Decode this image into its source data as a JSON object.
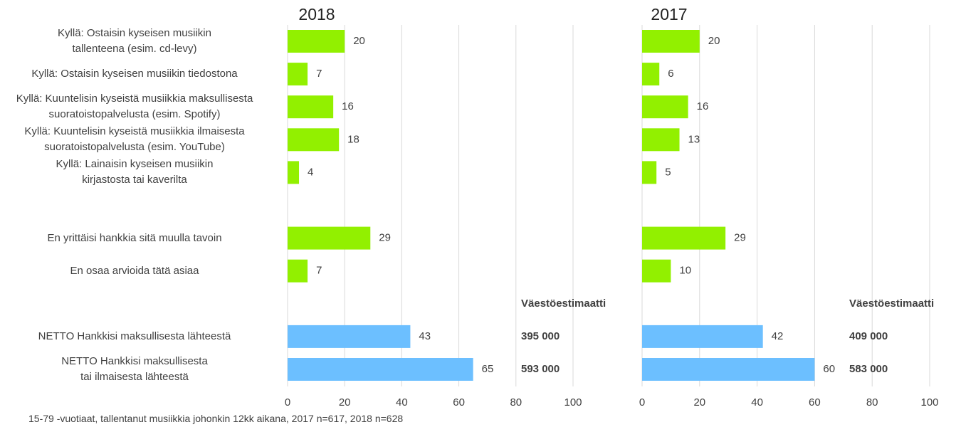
{
  "chart_data": [
    {
      "type": "bar",
      "title": "2018",
      "categories": [
        "Kyllä: Ostaisin kyseisen musiikin\ntallenteena (esim. cd-levy)",
        "Kyllä: Ostaisin kyseisen musiikin tiedostona",
        "Kyllä: Kuuntelisin kyseistä musiikkia maksullisesta\nsuoratoistopalvelusta (esim. Spotify)",
        "Kyllä: Kuuntelisin kyseistä musiikkia ilmaisesta\nsuoratoistopalvelusta (esim. YouTube)",
        "Kyllä: Lainaisin kyseisen musiikin\nkirjastosta tai kaverilta",
        null,
        "En yrittäisi hankkia sitä muulla tavoin",
        "En osaa arvioida tätä asiaa",
        null,
        "NETTO Hankkisi maksullisesta lähteestä",
        "NETTO Hankkisi maksullisesta\ntai ilmaisesta lähteestä"
      ],
      "values": [
        20,
        7,
        16,
        18,
        4,
        null,
        29,
        7,
        null,
        43,
        65
      ],
      "colors": [
        "#92f000",
        "#92f000",
        "#92f000",
        "#92f000",
        "#92f000",
        null,
        "#92f000",
        "#92f000",
        null,
        "#6cbfff",
        "#6cbfff"
      ],
      "estimate_title": "Väestöestimaatti",
      "estimates": [
        null,
        null,
        null,
        null,
        null,
        null,
        null,
        null,
        null,
        "395 000",
        "593 000"
      ],
      "xlim": [
        0,
        100
      ],
      "xticks": [
        0,
        20,
        40,
        60,
        80,
        100
      ],
      "grid": true
    },
    {
      "type": "bar",
      "title": "2017",
      "values": [
        20,
        6,
        16,
        13,
        5,
        null,
        29,
        10,
        null,
        42,
        60
      ],
      "colors": [
        "#92f000",
        "#92f000",
        "#92f000",
        "#92f000",
        "#92f000",
        null,
        "#92f000",
        "#92f000",
        null,
        "#6cbfff",
        "#6cbfff"
      ],
      "estimate_title": "Väestöestimaatti",
      "estimates": [
        null,
        null,
        null,
        null,
        null,
        null,
        null,
        null,
        null,
        "409 000",
        "583 000"
      ],
      "xlim": [
        0,
        100
      ],
      "xticks": [
        0,
        20,
        40,
        60,
        80,
        100
      ],
      "grid": true
    }
  ],
  "footnote": "15-79 -vuotiaat, tallentanut musiikkia johonkin 12kk aikana, 2017 n=617, 2018 n=628"
}
